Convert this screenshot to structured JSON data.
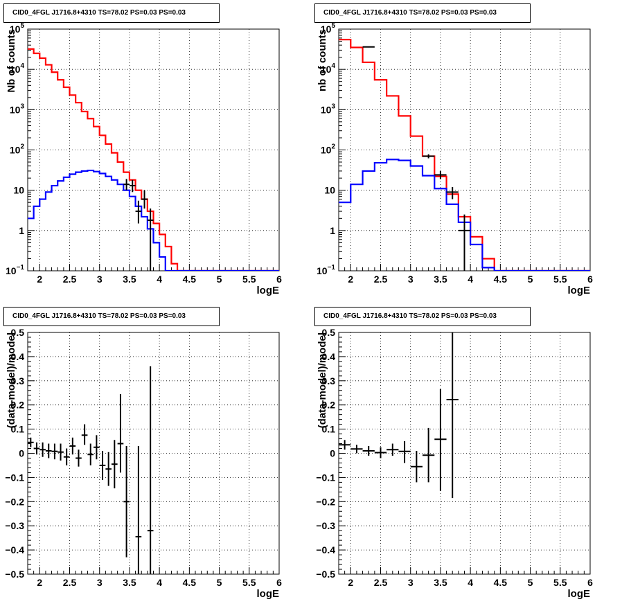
{
  "chart_data": [
    {
      "type": "line",
      "title": "CID0_4FGL J1716.8+4310 TS=78.02 PS=0.03 PS=0.03",
      "xlabel": "logE",
      "ylabel": "Nb of counts",
      "xlim": [
        1.8,
        6.0
      ],
      "ylim": [
        0.1,
        100000
      ],
      "yscale": "log",
      "grid": true,
      "x_ticks": [
        "2",
        "2.5",
        "3",
        "3.5",
        "4",
        "4.5",
        "5",
        "5.5",
        "6"
      ],
      "y_ticks": [
        {
          "v": 0.1,
          "base": "10",
          "exp": "−1"
        },
        {
          "v": 1,
          "label": "1"
        },
        {
          "v": 10,
          "label": "10"
        },
        {
          "v": 100,
          "base": "10",
          "exp": "2"
        },
        {
          "v": 1000,
          "base": "10",
          "exp": "3"
        },
        {
          "v": 10000,
          "base": "10",
          "exp": "4"
        },
        {
          "v": 100000,
          "base": "10",
          "exp": "5"
        }
      ],
      "bin_edges": [
        1.8,
        1.9,
        2.0,
        2.1,
        2.2,
        2.3,
        2.4,
        2.5,
        2.6,
        2.7,
        2.8,
        2.9,
        3.0,
        3.1,
        3.2,
        3.3,
        3.4,
        3.5,
        3.6,
        3.7,
        3.8,
        3.9,
        4.0,
        4.1,
        4.2,
        4.3,
        4.4,
        4.5,
        4.6,
        4.7,
        4.8,
        4.9,
        5.0,
        5.1,
        5.2,
        5.3,
        5.4,
        5.5,
        5.6,
        5.7,
        5.8,
        5.9,
        6.0
      ],
      "series": [
        {
          "color": "#ff0000",
          "kind": "hist",
          "values": [
            32000,
            25000,
            19000,
            13000,
            8500,
            5500,
            3600,
            2300,
            1500,
            900,
            600,
            380,
            230,
            140,
            85,
            50,
            28,
            18,
            10,
            6,
            3,
            1.5,
            0.8,
            0.4,
            0.15,
            0.1,
            0.1,
            0.1,
            0.1,
            0.1,
            0.1,
            0.1,
            0.1,
            0.1,
            0.1,
            0.1,
            0.1,
            0.1,
            0.1,
            0.1,
            0.1,
            0.1
          ]
        },
        {
          "color": "#0000ff",
          "kind": "hist",
          "values": [
            2,
            4,
            6,
            9,
            13,
            17,
            21,
            25,
            28,
            30,
            31,
            29,
            26,
            22,
            18,
            14,
            10,
            7,
            4,
            2.2,
            1.1,
            0.5,
            0.22,
            0.1,
            0.1,
            0.1,
            0.1,
            0.1,
            0.1,
            0.1,
            0.1,
            0.1,
            0.1,
            0.1,
            0.1,
            0.1,
            0.1,
            0.1,
            0.1,
            0.1,
            0.1,
            0.1
          ]
        },
        {
          "color": "#000000",
          "kind": "points",
          "x": [
            3.45,
            3.55,
            3.65,
            3.75,
            3.85
          ],
          "y": [
            14,
            13,
            3.0,
            6,
            1.8
          ],
          "ylow": [
            10,
            9,
            1.5,
            3.5,
            0.1
          ],
          "yhigh": [
            19,
            18,
            5.5,
            10,
            3.5
          ]
        }
      ]
    },
    {
      "type": "line",
      "title": "CID0_4FGL J1716.8+4310 TS=78.02 PS=0.03 PS=0.03",
      "xlabel": "logE",
      "ylabel": "nb of counts",
      "xlim": [
        1.8,
        6.0
      ],
      "ylim": [
        0.1,
        100000
      ],
      "yscale": "log",
      "grid": true,
      "x_ticks": [
        "2",
        "2.5",
        "3",
        "3.5",
        "4",
        "4.5",
        "5",
        "5.5",
        "6"
      ],
      "y_ticks": [
        {
          "v": 0.1,
          "base": "10",
          "exp": "−1"
        },
        {
          "v": 1,
          "label": "1"
        },
        {
          "v": 10,
          "label": "10"
        },
        {
          "v": 100,
          "base": "10",
          "exp": "2"
        },
        {
          "v": 1000,
          "base": "10",
          "exp": "3"
        },
        {
          "v": 10000,
          "base": "10",
          "exp": "4"
        },
        {
          "v": 100000,
          "base": "10",
          "exp": "5"
        }
      ],
      "bin_edges": [
        1.8,
        2.0,
        2.2,
        2.4,
        2.6,
        2.8,
        3.0,
        3.2,
        3.4,
        3.6,
        3.8,
        4.0,
        4.2,
        4.4,
        4.6,
        4.8,
        5.0,
        5.2,
        5.4,
        5.6,
        5.8,
        6.0
      ],
      "series": [
        {
          "color": "#ff0000",
          "kind": "hist",
          "values": [
            55000,
            35000,
            15000,
            5500,
            2200,
            700,
            220,
            70,
            22,
            8,
            2.2,
            0.7,
            0.2,
            0.1,
            0.1,
            0.1,
            0.1,
            0.1,
            0.1,
            0.1,
            0.1
          ]
        },
        {
          "color": "#0000ff",
          "kind": "hist",
          "values": [
            5,
            14,
            30,
            48,
            58,
            55,
            40,
            23,
            11,
            4.5,
            1.6,
            0.45,
            0.12,
            0.1,
            0.1,
            0.1,
            0.1,
            0.1,
            0.1,
            0.1,
            0.1
          ]
        },
        {
          "color": "#000000",
          "kind": "points",
          "x": [
            2.3,
            3.3,
            3.5,
            3.7,
            3.9
          ],
          "y": [
            36000,
            70,
            24,
            9,
            1.0
          ],
          "ylow": [
            35000,
            62,
            19,
            6,
            0.1
          ],
          "yhigh": [
            37000,
            78,
            30,
            12,
            2.5
          ]
        }
      ]
    },
    {
      "type": "scatter",
      "title": "CID0_4FGL J1716.8+4310 TS=78.02 PS=0.03 PS=0.03",
      "xlabel": "logE",
      "ylabel": "(data-model)/model",
      "xlim": [
        1.8,
        6.0
      ],
      "ylim": [
        -0.5,
        0.5
      ],
      "grid": true,
      "x_ticks": [
        "2",
        "2.5",
        "3",
        "3.5",
        "4",
        "4.5",
        "5",
        "5.5",
        "6"
      ],
      "y_ticks": [
        "−0.5",
        "−0.4",
        "−0.3",
        "−0.2",
        "−0.1",
        "0",
        "0.1",
        "0.2",
        "0.3",
        "0.4",
        "0.5"
      ],
      "points": {
        "x": [
          1.85,
          1.95,
          2.05,
          2.15,
          2.25,
          2.35,
          2.45,
          2.55,
          2.65,
          2.75,
          2.85,
          2.95,
          3.05,
          3.15,
          3.25,
          3.35,
          3.45,
          3.65,
          3.85
        ],
        "y": [
          0.045,
          0.02,
          0.015,
          0.01,
          0.008,
          0.005,
          -0.015,
          0.03,
          -0.02,
          0.075,
          -0.005,
          0.025,
          -0.05,
          -0.065,
          -0.045,
          0.04,
          -0.2,
          -0.345,
          -0.32
        ],
        "ylow": [
          0.025,
          -0.005,
          -0.015,
          -0.02,
          -0.025,
          -0.03,
          -0.05,
          -0.005,
          -0.055,
          0.035,
          -0.05,
          -0.025,
          -0.11,
          -0.135,
          -0.145,
          -0.08,
          -0.43,
          -0.5,
          -0.5
        ],
        "yhigh": [
          0.065,
          0.045,
          0.045,
          0.04,
          0.04,
          0.04,
          0.02,
          0.065,
          0.015,
          0.12,
          0.04,
          0.075,
          0.01,
          0.005,
          0.055,
          0.245,
          0.03,
          0.03,
          0.36
        ]
      }
    },
    {
      "type": "scatter",
      "title": "CID0_4FGL J1716.8+4310 TS=78.02 PS=0.03 PS=0.03",
      "xlabel": "logE",
      "ylabel": "(data-model)/model",
      "xlim": [
        1.8,
        6.0
      ],
      "ylim": [
        -0.5,
        0.5
      ],
      "grid": true,
      "x_ticks": [
        "2",
        "2.5",
        "3",
        "3.5",
        "4",
        "4.5",
        "5",
        "5.5",
        "6"
      ],
      "y_ticks": [
        "−0.5",
        "−0.4",
        "−0.3",
        "−0.2",
        "−0.1",
        "0",
        "0.1",
        "0.2",
        "0.3",
        "0.4",
        "0.5"
      ],
      "points": {
        "x": [
          1.9,
          2.1,
          2.3,
          2.5,
          2.7,
          2.9,
          3.1,
          3.3,
          3.5,
          3.7
        ],
        "y": [
          0.035,
          0.018,
          0.01,
          0.003,
          0.015,
          0.008,
          -0.055,
          -0.008,
          0.058,
          0.222
        ],
        "ylow": [
          0.015,
          0.0,
          -0.01,
          -0.02,
          -0.01,
          -0.04,
          -0.12,
          -0.12,
          -0.155,
          -0.185
        ],
        "yhigh": [
          0.055,
          0.035,
          0.03,
          0.025,
          0.04,
          0.05,
          0.01,
          0.105,
          0.265,
          0.5
        ]
      }
    }
  ]
}
